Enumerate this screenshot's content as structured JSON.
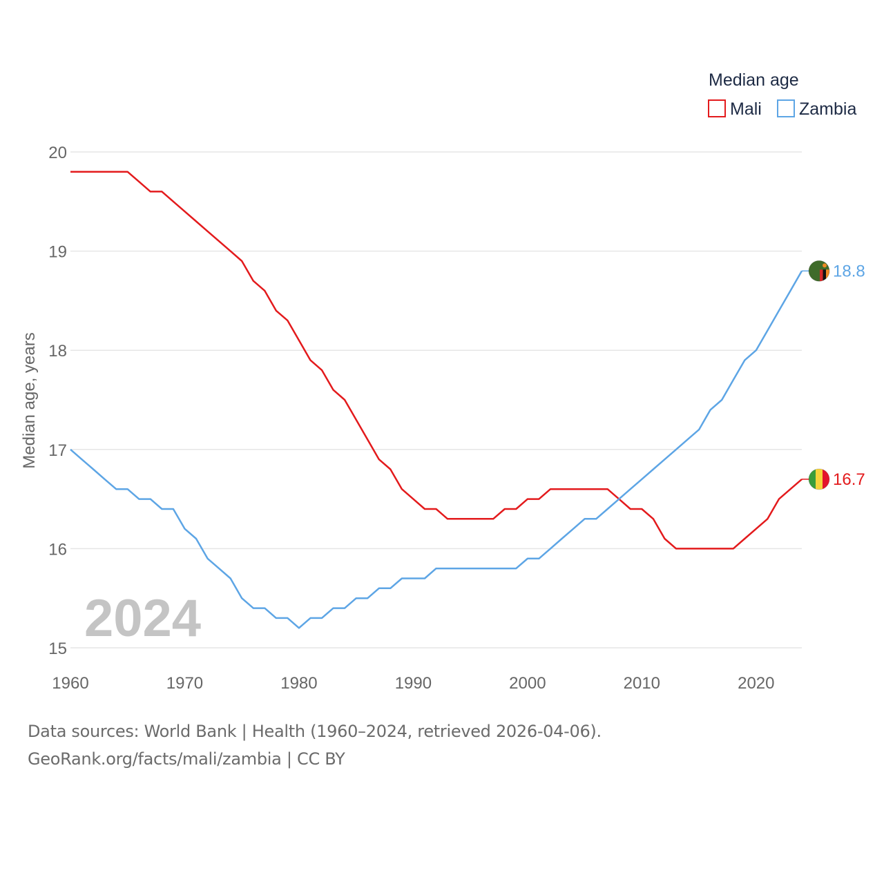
{
  "chart_data": {
    "type": "line",
    "legend_title": "Median age",
    "ylabel": "Median age, years",
    "xlabel": "",
    "xlim": [
      1960,
      2024
    ],
    "ylim": [
      15,
      20
    ],
    "xticks": [
      1960,
      1970,
      1980,
      1990,
      2000,
      2010,
      2020
    ],
    "yticks": [
      15,
      16,
      17,
      18,
      19,
      20
    ],
    "year_watermark": "2024",
    "legend_position": "top-right",
    "grid": true,
    "x": [
      1960,
      1961,
      1962,
      1963,
      1964,
      1965,
      1966,
      1967,
      1968,
      1969,
      1970,
      1971,
      1972,
      1973,
      1974,
      1975,
      1976,
      1977,
      1978,
      1979,
      1980,
      1981,
      1982,
      1983,
      1984,
      1985,
      1986,
      1987,
      1988,
      1989,
      1990,
      1991,
      1992,
      1993,
      1994,
      1995,
      1996,
      1997,
      1998,
      1999,
      2000,
      2001,
      2002,
      2003,
      2004,
      2005,
      2006,
      2007,
      2008,
      2009,
      2010,
      2011,
      2012,
      2013,
      2014,
      2015,
      2016,
      2017,
      2018,
      2019,
      2020,
      2021,
      2022,
      2023,
      2024
    ],
    "series": [
      {
        "name": "Mali",
        "color": "#e31a1c",
        "end_label": "16.7",
        "values": [
          19.8,
          19.8,
          19.8,
          19.8,
          19.8,
          19.8,
          19.7,
          19.6,
          19.6,
          19.5,
          19.4,
          19.3,
          19.2,
          19.1,
          19.0,
          18.9,
          18.7,
          18.6,
          18.4,
          18.3,
          18.1,
          17.9,
          17.8,
          17.6,
          17.5,
          17.3,
          17.1,
          16.9,
          16.8,
          16.6,
          16.5,
          16.4,
          16.4,
          16.3,
          16.3,
          16.3,
          16.3,
          16.3,
          16.4,
          16.4,
          16.5,
          16.5,
          16.6,
          16.6,
          16.6,
          16.6,
          16.6,
          16.6,
          16.5,
          16.4,
          16.4,
          16.3,
          16.1,
          16.0,
          16.0,
          16.0,
          16.0,
          16.0,
          16.0,
          16.1,
          16.2,
          16.3,
          16.5,
          16.6,
          16.7
        ]
      },
      {
        "name": "Zambia",
        "color": "#5da5e5",
        "end_label": "18.8",
        "values": [
          17.0,
          16.9,
          16.8,
          16.7,
          16.6,
          16.6,
          16.5,
          16.5,
          16.4,
          16.4,
          16.2,
          16.1,
          15.9,
          15.8,
          15.7,
          15.5,
          15.4,
          15.4,
          15.3,
          15.3,
          15.2,
          15.3,
          15.3,
          15.4,
          15.4,
          15.5,
          15.5,
          15.6,
          15.6,
          15.7,
          15.7,
          15.7,
          15.8,
          15.8,
          15.8,
          15.8,
          15.8,
          15.8,
          15.8,
          15.8,
          15.9,
          15.9,
          16.0,
          16.1,
          16.2,
          16.3,
          16.3,
          16.4,
          16.5,
          16.6,
          16.7,
          16.8,
          16.9,
          17.0,
          17.1,
          17.2,
          17.4,
          17.5,
          17.7,
          17.9,
          18.0,
          18.2,
          18.4,
          18.6,
          18.8
        ]
      }
    ]
  },
  "footer": {
    "sources": "Data sources: World Bank | Health (1960–2024, retrieved 2026-04-06).",
    "credit": "GeoRank.org/facts/mali/zambia | CC BY"
  }
}
